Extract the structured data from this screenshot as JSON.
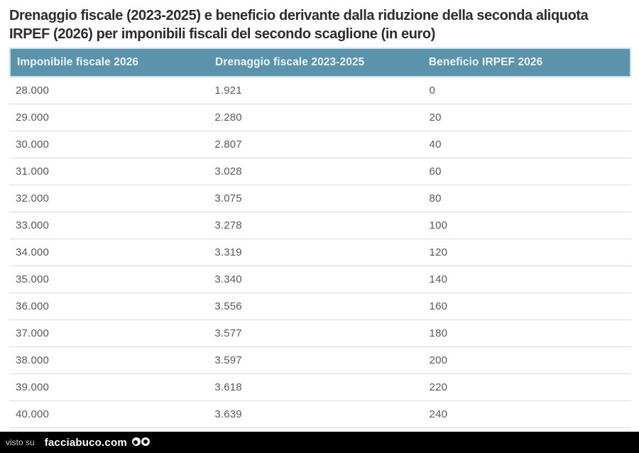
{
  "chart_data": {
    "type": "table",
    "title": "Drenaggio fiscale (2023-2025) e beneficio derivante dalla riduzione della seconda aliquota IRPEF (2026) per imponibili fiscali del secondo scaglione (in euro)",
    "columns": [
      "Imponibile fiscale 2026",
      "Drenaggio fiscale 2023-2025",
      "Beneficio IRPEF 2026"
    ],
    "rows": [
      [
        "28.000",
        "1.921",
        "0"
      ],
      [
        "29.000",
        "2.280",
        "20"
      ],
      [
        "30.000",
        "2.807",
        "40"
      ],
      [
        "31.000",
        "3.028",
        "60"
      ],
      [
        "32.000",
        "3.075",
        "80"
      ],
      [
        "33.000",
        "3.278",
        "100"
      ],
      [
        "34.000",
        "3.319",
        "120"
      ],
      [
        "35.000",
        "3.340",
        "140"
      ],
      [
        "36.000",
        "3.556",
        "160"
      ],
      [
        "37.000",
        "3.577",
        "180"
      ],
      [
        "38.000",
        "3.597",
        "200"
      ],
      [
        "39.000",
        "3.618",
        "220"
      ],
      [
        "40.000",
        "3.639",
        "240"
      ]
    ]
  },
  "footer": {
    "prefix": "visto su",
    "site": "facciabuco.com",
    "logo": "googly-eyes-icon"
  },
  "colors": {
    "header_bg": "#5b93ad",
    "header_border": "#c9dfe9",
    "header_text": "#edf5f7",
    "title_text": "#2d2d2d",
    "row_text": "#595959",
    "separator": "#dcdcdc",
    "footer_bg": "#010101",
    "footer_text": "#ffffff"
  }
}
